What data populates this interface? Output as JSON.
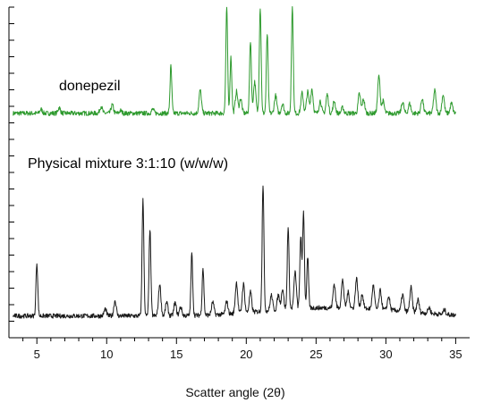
{
  "chart_data": {
    "type": "line",
    "title": "",
    "xlabel": "Scatter angle  (2θ)",
    "ylabel": "",
    "xlim": [
      3,
      36
    ],
    "ylim": [
      0,
      100
    ],
    "x_ticks": [
      5,
      10,
      15,
      20,
      25,
      30,
      35
    ],
    "x_tick_labels": [
      "5",
      "10",
      "15",
      "20",
      "25",
      "30",
      "35"
    ],
    "y_tick_values": [
      0,
      5,
      10,
      15,
      20,
      25,
      30,
      35,
      40,
      45,
      50,
      55,
      60,
      65,
      70,
      75,
      80,
      85,
      90,
      95,
      100
    ],
    "y_tick_labels_shown": false,
    "grid": false,
    "legend": "none (series labelled directly on the plot)",
    "series": [
      {
        "name": "donepezil",
        "color": "#2e9a2e",
        "baseline": 67.9,
        "x_range": [
          3.3,
          35
        ],
        "peaks": [
          {
            "x": 5.3,
            "y": 69.1
          },
          {
            "x": 6.6,
            "y": 69.6
          },
          {
            "x": 9.6,
            "y": 70.0
          },
          {
            "x": 10.4,
            "y": 70.4
          },
          {
            "x": 11.0,
            "y": 68.7
          },
          {
            "x": 13.3,
            "y": 69.1
          },
          {
            "x": 14.6,
            "y": 82.1
          },
          {
            "x": 16.7,
            "y": 74.8
          },
          {
            "x": 18.6,
            "y": 100
          },
          {
            "x": 18.9,
            "y": 85.0
          },
          {
            "x": 19.3,
            "y": 74.5
          },
          {
            "x": 19.6,
            "y": 72.4
          },
          {
            "x": 20.3,
            "y": 89.8
          },
          {
            "x": 20.6,
            "y": 77.4
          },
          {
            "x": 21.0,
            "y": 100
          },
          {
            "x": 21.5,
            "y": 91.9
          },
          {
            "x": 22.1,
            "y": 73.3
          },
          {
            "x": 22.6,
            "y": 70.8
          },
          {
            "x": 23.3,
            "y": 100
          },
          {
            "x": 24.0,
            "y": 74.0
          },
          {
            "x": 24.4,
            "y": 74.4
          },
          {
            "x": 24.7,
            "y": 75.3
          },
          {
            "x": 25.3,
            "y": 71.7
          },
          {
            "x": 25.8,
            "y": 73.6
          },
          {
            "x": 26.3,
            "y": 71.6
          },
          {
            "x": 26.9,
            "y": 69.6
          },
          {
            "x": 28.1,
            "y": 73.8
          },
          {
            "x": 28.4,
            "y": 72.1
          },
          {
            "x": 29.5,
            "y": 79.2
          },
          {
            "x": 29.8,
            "y": 71.6
          },
          {
            "x": 31.2,
            "y": 71.3
          },
          {
            "x": 31.7,
            "y": 70.8
          },
          {
            "x": 32.6,
            "y": 72.4
          },
          {
            "x": 33.5,
            "y": 74.8
          },
          {
            "x": 34.1,
            "y": 73.6
          },
          {
            "x": 34.7,
            "y": 70.9
          }
        ]
      },
      {
        "name": "Physical mixture 3:1:10 (w/w/w)",
        "color": "#1a1a1a",
        "baseline": 6.6,
        "x_range": [
          3.3,
          35
        ],
        "peaks": [
          {
            "x": 5.0,
            "y": 22.6
          },
          {
            "x": 9.9,
            "y": 8.7
          },
          {
            "x": 10.6,
            "y": 11.2
          },
          {
            "x": 12.6,
            "y": 41.7
          },
          {
            "x": 13.1,
            "y": 33.0
          },
          {
            "x": 13.8,
            "y": 16.2
          },
          {
            "x": 14.3,
            "y": 10.8
          },
          {
            "x": 14.9,
            "y": 10.5
          },
          {
            "x": 15.3,
            "y": 9.3
          },
          {
            "x": 16.1,
            "y": 25.3
          },
          {
            "x": 16.9,
            "y": 20.8
          },
          {
            "x": 17.6,
            "y": 10.5
          },
          {
            "x": 18.6,
            "y": 10.5
          },
          {
            "x": 19.3,
            "y": 15.9
          },
          {
            "x": 19.8,
            "y": 15.3
          },
          {
            "x": 20.3,
            "y": 12.7
          },
          {
            "x": 21.2,
            "y": 45.0
          },
          {
            "x": 21.8,
            "y": 11.2
          },
          {
            "x": 22.3,
            "y": 11.0
          },
          {
            "x": 22.6,
            "y": 12.9
          },
          {
            "x": 23.0,
            "y": 31.5
          },
          {
            "x": 23.5,
            "y": 17.7
          },
          {
            "x": 23.9,
            "y": 28.5
          },
          {
            "x": 24.1,
            "y": 35.7
          },
          {
            "x": 24.4,
            "y": 21.9
          },
          {
            "x": 26.3,
            "y": 13.8
          },
          {
            "x": 26.9,
            "y": 15.0
          },
          {
            "x": 27.3,
            "y": 11.4
          },
          {
            "x": 27.9,
            "y": 15.6
          },
          {
            "x": 28.3,
            "y": 11.0
          },
          {
            "x": 29.1,
            "y": 13.7
          },
          {
            "x": 29.6,
            "y": 12.3
          },
          {
            "x": 30.2,
            "y": 10.7
          },
          {
            "x": 31.2,
            "y": 11.6
          },
          {
            "x": 31.8,
            "y": 14.0
          },
          {
            "x": 32.3,
            "y": 10.5
          },
          {
            "x": 33.1,
            "y": 8.4
          },
          {
            "x": 34.2,
            "y": 8.0
          }
        ]
      }
    ]
  },
  "annotations": {
    "donepezil_label": "donepezil",
    "mixture_label": "Physical mixture 3:1:10 (w/w/w)"
  }
}
